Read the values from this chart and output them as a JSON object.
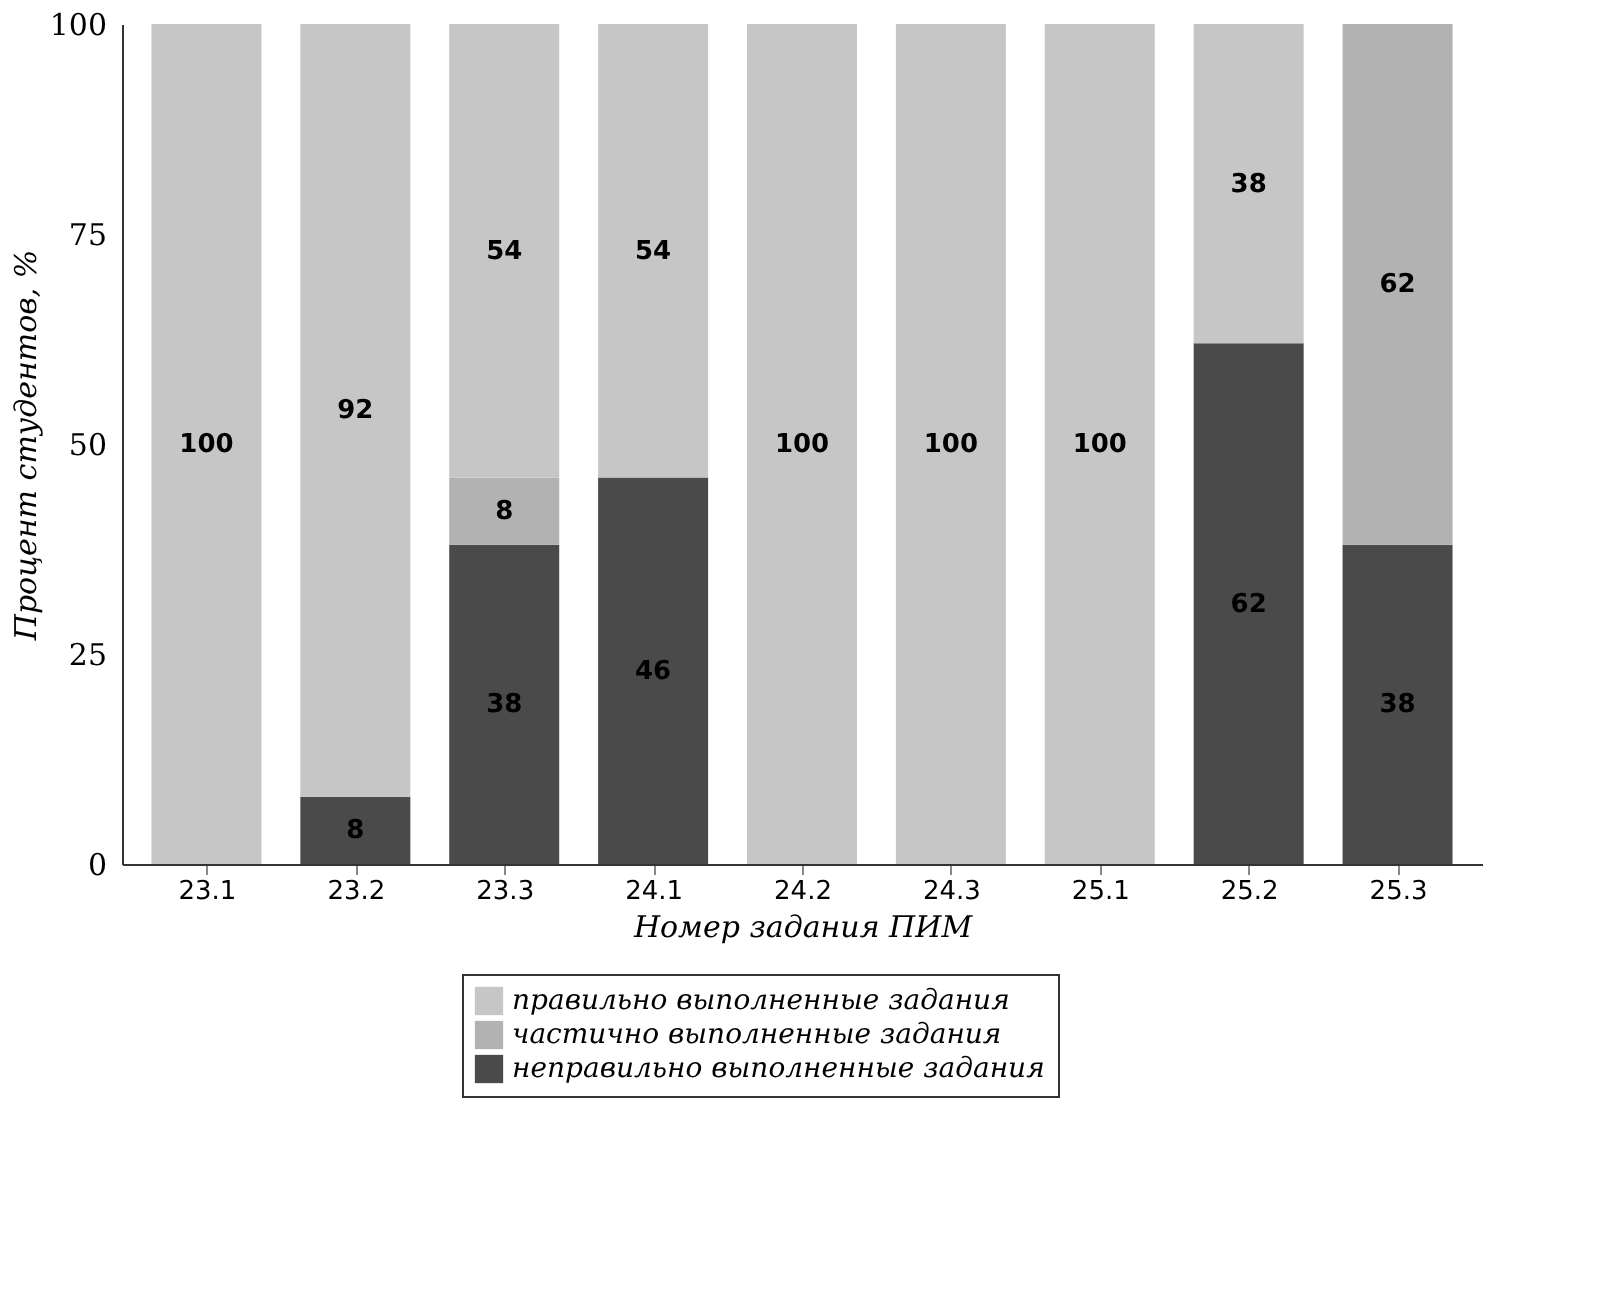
{
  "chart_data": {
    "type": "bar",
    "stacked": true,
    "data_labels": true,
    "legend": "bottom",
    "grid": false,
    "xlabel": "Номер задания ПИМ",
    "ylabel": "Процент студентов, %",
    "categories": [
      "23.1",
      "23.2",
      "23.3",
      "24.1",
      "24.2",
      "24.3",
      "25.1",
      "25.2",
      "25.3"
    ],
    "ylim": [
      0,
      100
    ],
    "yticks": [
      0,
      25,
      50,
      75,
      100
    ],
    "series": [
      {
        "name": "неправильно выполненные задания",
        "color": "#4a4a4a",
        "values": [
          null,
          8,
          38,
          46,
          null,
          null,
          null,
          62,
          38
        ]
      },
      {
        "name": "частично выполненные задания",
        "color": "#b2b2b2",
        "values": [
          null,
          null,
          8,
          null,
          null,
          null,
          null,
          null,
          62
        ]
      },
      {
        "name": "правильно выполненные задания",
        "color": "#c6c6c6",
        "values": [
          100,
          92,
          54,
          54,
          100,
          100,
          100,
          38,
          null
        ]
      }
    ]
  }
}
